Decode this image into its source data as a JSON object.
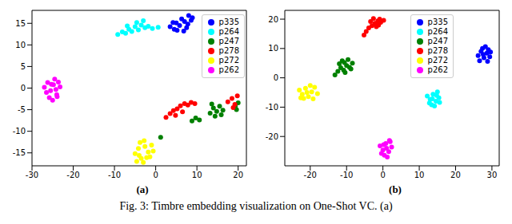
{
  "caption": "Fig. 3: Timbre embedding visualization on One-Shot VC. (a)",
  "chart_data": [
    {
      "type": "scatter",
      "panel_label": "(a)",
      "xlim": [
        -30,
        22
      ],
      "xticks": [
        -30,
        -20,
        -10,
        0,
        10,
        20
      ],
      "ylim": [
        -18,
        18
      ],
      "yticks": [
        -15,
        -10,
        -5,
        0,
        5,
        10,
        15
      ],
      "legend": "upper right",
      "marker": "o",
      "series": [
        {
          "name": "p335",
          "color": "#0000ff",
          "x": [
            3.5,
            4.5,
            5,
            5.8,
            6.3,
            7,
            7.5,
            8,
            8.6,
            5.2,
            6.8,
            7.8,
            4.2,
            8.9
          ],
          "y": [
            14.2,
            13.6,
            15.1,
            14.5,
            16,
            15.4,
            14,
            16.8,
            15.7,
            13.4,
            13.2,
            14.8,
            15.2,
            16.3
          ]
        },
        {
          "name": "p264",
          "color": "#00ffff",
          "x": [
            -9.2,
            -8.1,
            -7.3,
            -6.5,
            -5.8,
            -5,
            -4.2,
            -3.5,
            -2.6,
            -1.8,
            -0.8,
            0.6,
            -6.9,
            -4.6,
            -3
          ],
          "y": [
            12.4,
            13,
            12.7,
            13.6,
            13.1,
            14.2,
            13.5,
            14.6,
            14,
            14.3,
            13.8,
            14.1,
            14.4,
            15.2,
            15.6
          ]
        },
        {
          "name": "p247",
          "color": "#008000",
          "x": [
            8.8,
            9.7,
            10.6,
            13.2,
            14,
            14.8,
            15.5,
            16.3,
            14.4,
            15.9,
            13.6,
            19.3,
            20,
            19.6,
            1.2
          ],
          "y": [
            -7.6,
            -6.9,
            -7.4,
            -5.8,
            -4.6,
            -5.4,
            -4.2,
            -5.1,
            -6.5,
            -6.2,
            -3.7,
            -4.2,
            -3.4,
            -5,
            -11.4
          ]
        },
        {
          "name": "p278",
          "color": "#ff0000",
          "x": [
            2.5,
            3.5,
            4.3,
            5.2,
            6,
            7,
            7.8,
            8.6,
            9.5,
            4.8,
            6.5,
            17.5,
            18.5,
            19.2,
            19.8,
            18.8
          ],
          "y": [
            -6.8,
            -5.9,
            -5.2,
            -4.8,
            -4.1,
            -3.6,
            -3.9,
            -3.3,
            -3.6,
            -6.3,
            -5.5,
            -3.2,
            -2.4,
            -3.8,
            -1.8,
            -4.5
          ]
        },
        {
          "name": "p272",
          "color": "#ffff00",
          "x": [
            -5,
            -4.2,
            -3.5,
            -2.6,
            -1.8,
            -1,
            -4.6,
            -3,
            -2.2,
            -3.8,
            -1.4,
            -2.8,
            -4,
            -0.6
          ],
          "y": [
            -15.2,
            -14,
            -16.3,
            -13.5,
            -14.8,
            -13.2,
            -17,
            -17.2,
            -16.1,
            -12.6,
            -15.9,
            -12.2,
            -15.6,
            -14.6
          ]
        },
        {
          "name": "p262",
          "color": "#ff00ff",
          "x": [
            -27,
            -26.2,
            -25.5,
            -24.8,
            -24,
            -23.2,
            -25.8,
            -24.5,
            -23.6,
            -26.5,
            -25,
            -24.2,
            -25.3,
            -23.9
          ],
          "y": [
            0.2,
            1.3,
            -0.6,
            0.8,
            -1.5,
            0.3,
            -2.2,
            2.1,
            1.4,
            -1,
            -2.8,
            -0.3,
            0.9,
            -2
          ]
        }
      ]
    },
    {
      "type": "scatter",
      "panel_label": "(b)",
      "xlim": [
        -27,
        32
      ],
      "xticks": [
        -20,
        -10,
        0,
        10,
        20,
        30
      ],
      "ylim": [
        -30,
        23
      ],
      "yticks": [
        -20,
        -10,
        0,
        10,
        20
      ],
      "legend": "upper right",
      "marker": "o",
      "series": [
        {
          "name": "p335",
          "color": "#0000ff",
          "x": [
            26.2,
            27,
            27.8,
            28.6,
            29.4,
            27.4,
            28.2,
            29,
            26.6,
            28.8,
            27.6,
            29.6
          ],
          "y": [
            7.6,
            9,
            6.8,
            8.4,
            7.2,
            10,
            10.6,
            9.6,
            5.8,
            5.6,
            8,
            8.8
          ]
        },
        {
          "name": "p264",
          "color": "#00ffff",
          "x": [
            12.2,
            13,
            13.8,
            14.6,
            15.4,
            13.4,
            14.2,
            15,
            12.8,
            14.8,
            13.6,
            15.6
          ],
          "y": [
            -6.2,
            -7.4,
            -5.6,
            -8,
            -6.8,
            -9.2,
            -9.6,
            -4.8,
            -8.6,
            -6,
            -7.2,
            -8.4
          ]
        },
        {
          "name": "p247",
          "color": "#008000",
          "x": [
            -13.2,
            -12.4,
            -11.6,
            -10.8,
            -10,
            -9.2,
            -8.4,
            -11.2,
            -9.6,
            -12,
            -10.4,
            -8.8,
            -10.6
          ],
          "y": [
            1,
            2.2,
            3.4,
            2.6,
            4.2,
            3.6,
            5,
            5.8,
            6.2,
            4.8,
            1.8,
            3,
            5.2
          ]
        },
        {
          "name": "p278",
          "color": "#ff0000",
          "x": [
            -5.2,
            -4.6,
            -3.9,
            -3,
            -2.2,
            -1.4,
            -0.6,
            0.2,
            -2.6,
            -1.8,
            -0.9,
            -3.4,
            -1.2
          ],
          "y": [
            14.6,
            15.8,
            17,
            17.8,
            18.6,
            19.4,
            18.9,
            19.6,
            20.2,
            17.4,
            20,
            19.2,
            18
          ]
        },
        {
          "name": "p272",
          "color": "#ffff00",
          "x": [
            -23,
            -22.2,
            -21.3,
            -20.5,
            -19.6,
            -18.8,
            -18,
            -21.8,
            -20,
            -19.2,
            -22.6,
            -20.9
          ],
          "y": [
            -4.2,
            -5.6,
            -3.6,
            -6.4,
            -4.8,
            -3.2,
            -5.4,
            -7,
            -2.6,
            -7.2,
            -6.8,
            -5
          ]
        },
        {
          "name": "p262",
          "color": "#ff00ff",
          "x": [
            -0.8,
            0,
            0.8,
            1.6,
            2.4,
            0.4,
            1.2,
            2,
            -0.4,
            1.8,
            1,
            0.2
          ],
          "y": [
            -23.2,
            -24.6,
            -22.4,
            -25.2,
            -23.6,
            -26.4,
            -27,
            -21.8,
            -25.8,
            -21.4,
            -24,
            -22.8
          ]
        }
      ]
    }
  ]
}
